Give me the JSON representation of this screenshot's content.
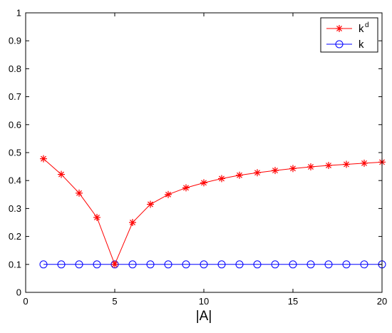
{
  "chart_data": {
    "type": "line",
    "title": "",
    "xlabel": "|A|",
    "ylabel": "",
    "xlim": [
      0,
      20
    ],
    "ylim": [
      0,
      1
    ],
    "xticks": [
      0,
      5,
      10,
      15,
      20
    ],
    "yticks": [
      0,
      0.1,
      0.2,
      0.3,
      0.4,
      0.5,
      0.6,
      0.7,
      0.8,
      0.9,
      1
    ],
    "grid": false,
    "legend_position": "top-right",
    "x": [
      1,
      2,
      3,
      4,
      5,
      6,
      7,
      8,
      9,
      10,
      11,
      12,
      13,
      14,
      15,
      16,
      17,
      18,
      19,
      20
    ],
    "series": [
      {
        "name": "k",
        "name_superscript": "d",
        "color": "#ff0000",
        "marker": "asterisk",
        "values": [
          0.478,
          0.422,
          0.355,
          0.268,
          0.1,
          0.25,
          0.315,
          0.35,
          0.374,
          0.392,
          0.407,
          0.419,
          0.428,
          0.436,
          0.443,
          0.449,
          0.454,
          0.458,
          0.462,
          0.466
        ]
      },
      {
        "name": "k",
        "name_superscript": "",
        "color": "#0000ff",
        "marker": "circle",
        "values": [
          0.1,
          0.1,
          0.1,
          0.1,
          0.1,
          0.1,
          0.1,
          0.1,
          0.1,
          0.1,
          0.1,
          0.1,
          0.1,
          0.1,
          0.1,
          0.1,
          0.1,
          0.1,
          0.1,
          0.1
        ]
      }
    ]
  }
}
